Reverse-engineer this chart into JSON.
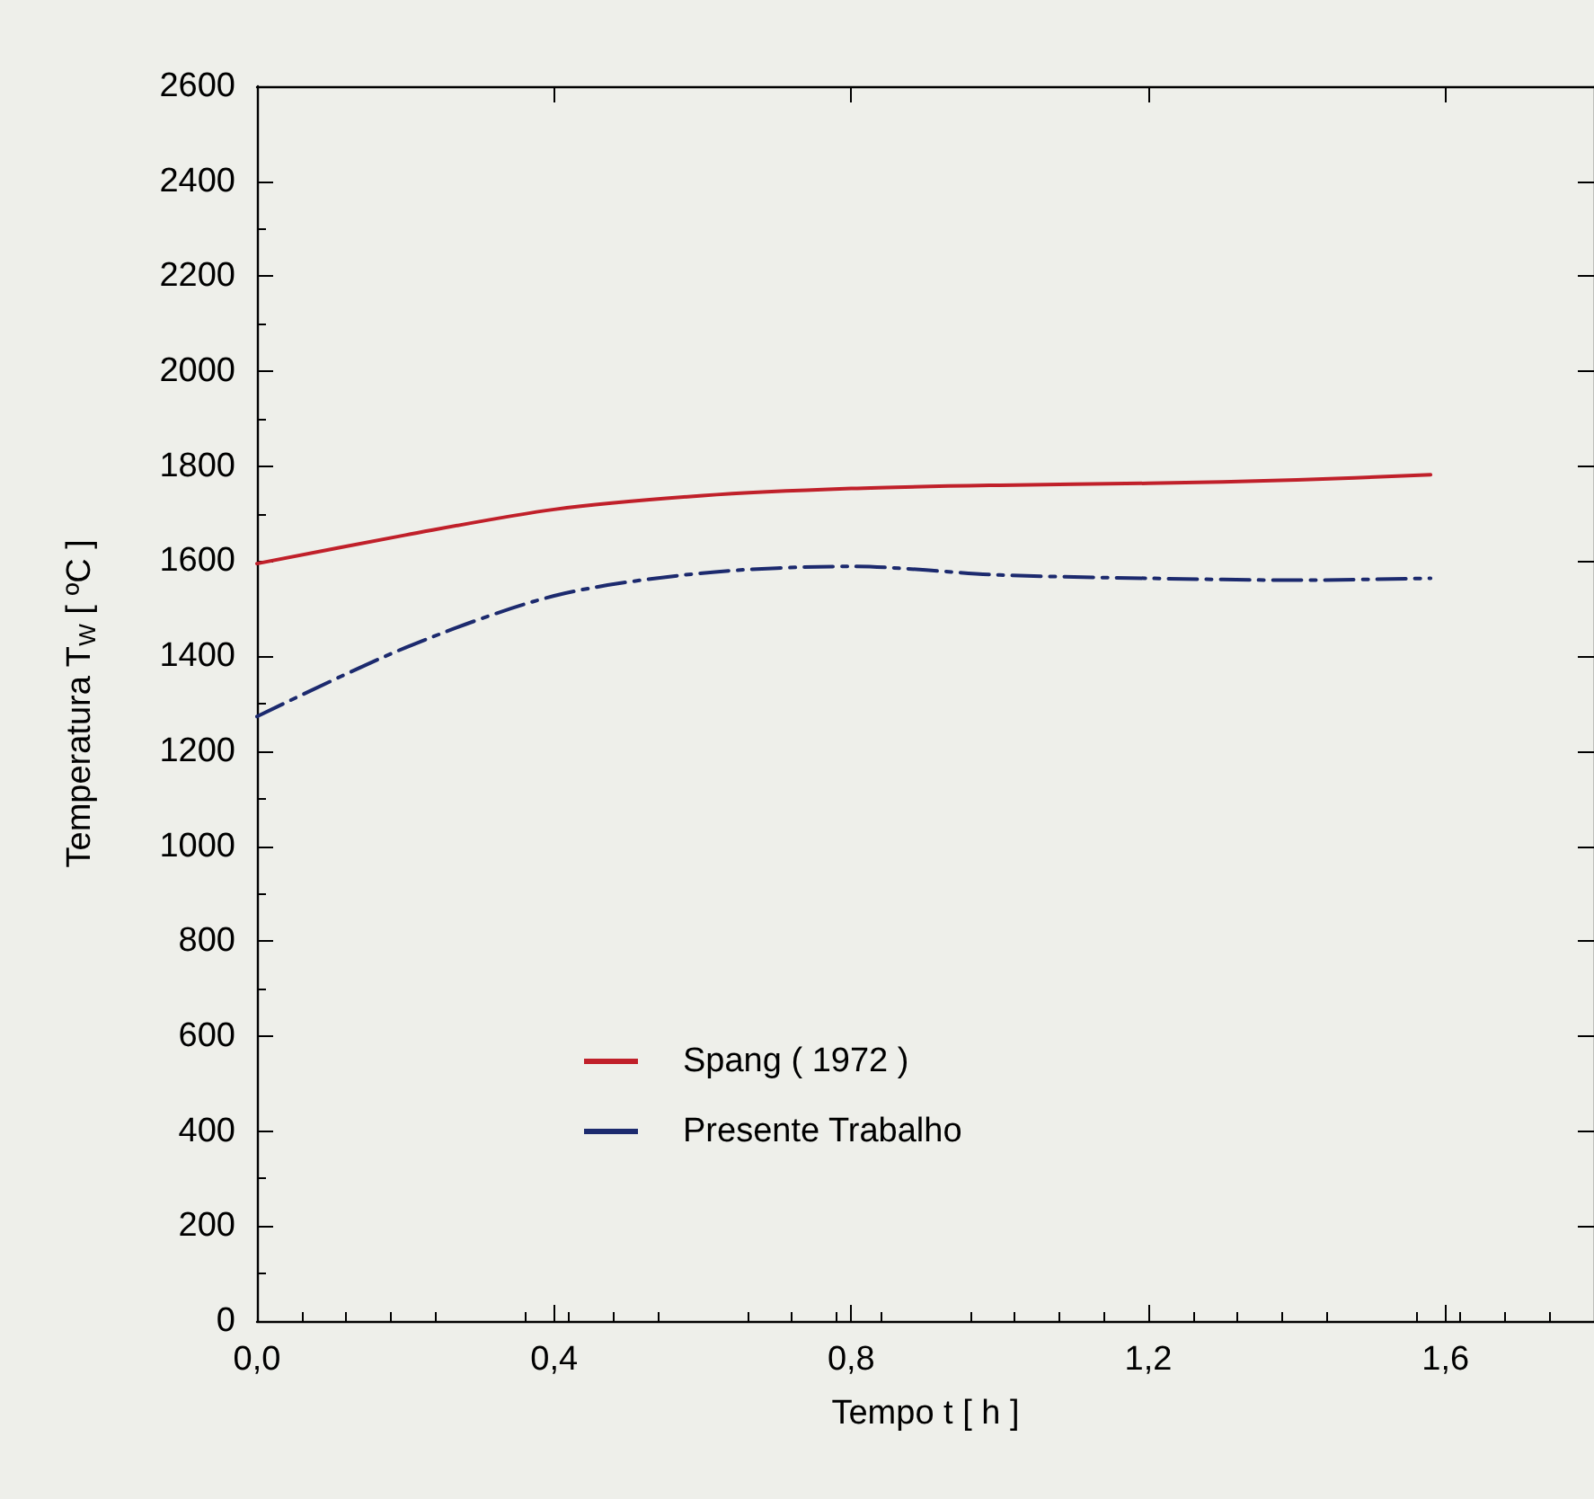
{
  "chart_data": {
    "type": "line",
    "xlabel": "Tempo t [ h ]",
    "ylabel": "Temperatura T$_{W}$ [ ºC ]",
    "xlim": [
      0,
      1.8
    ],
    "xticks": [
      {
        "value": 0,
        "label": "0,0"
      },
      {
        "value": 0.4,
        "label": "0,4"
      },
      {
        "value": 0.8,
        "label": "0,8"
      },
      {
        "value": 1.2,
        "label": "1,2"
      },
      {
        "value": 1.6,
        "label": "1,6"
      }
    ],
    "ylim": [
      0,
      2600
    ],
    "yticks": [
      0,
      200,
      400,
      600,
      800,
      1000,
      1200,
      1400,
      1600,
      1800,
      2000,
      2200,
      2400,
      2600
    ],
    "grid": false,
    "legend": "bottom",
    "marker": "none",
    "series": [
      {
        "name": "Spang ( 1972 )",
        "color": "#c0202a",
        "line_style": "solid",
        "x": [
          0,
          0.2,
          0.4,
          0.6,
          0.8,
          1.0,
          1.2,
          1.4,
          1.58
        ],
        "values": [
          1595,
          1655,
          1709,
          1738,
          1753,
          1760,
          1764,
          1771,
          1782
        ]
      },
      {
        "name": "Presente Trabalho",
        "color": "#1c2a6e",
        "line_style": "dashdot",
        "x": [
          0,
          0.2,
          0.4,
          0.6,
          0.8,
          1.0,
          1.2,
          1.4,
          1.58
        ],
        "values": [
          1273,
          1418,
          1527,
          1575,
          1589,
          1571,
          1564,
          1560,
          1564
        ]
      }
    ]
  }
}
